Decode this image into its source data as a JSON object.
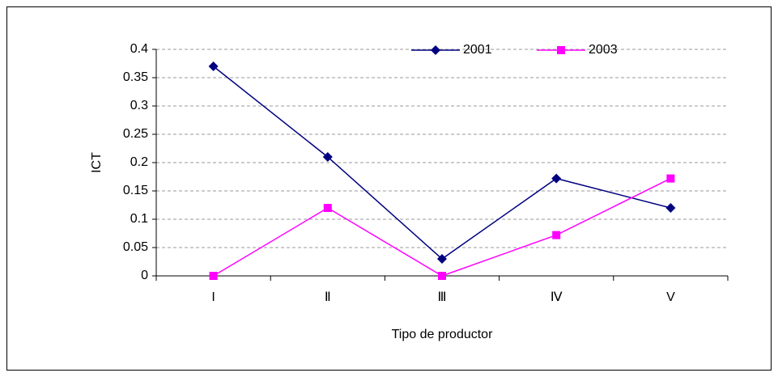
{
  "chart_data": {
    "type": "line",
    "categories": [
      "I",
      "Ⅱ",
      "Ⅲ",
      "Ⅳ",
      "V"
    ],
    "series": [
      {
        "name": "2001",
        "color": "#000080",
        "marker": "diamond",
        "values": [
          0.37,
          0.21,
          0.03,
          0.172,
          0.12
        ]
      },
      {
        "name": "2003",
        "color": "#ff00ff",
        "marker": "square",
        "values": [
          0,
          0.12,
          0,
          0.072,
          0.172
        ]
      }
    ],
    "ylim": [
      0,
      0.4
    ],
    "yticks": [
      0,
      0.05,
      0.1,
      0.15,
      0.2,
      0.25,
      0.3,
      0.35,
      0.4
    ],
    "ylabel": "ICT",
    "xlabel": "Tipo de productor",
    "grid": true,
    "legend": "top"
  }
}
